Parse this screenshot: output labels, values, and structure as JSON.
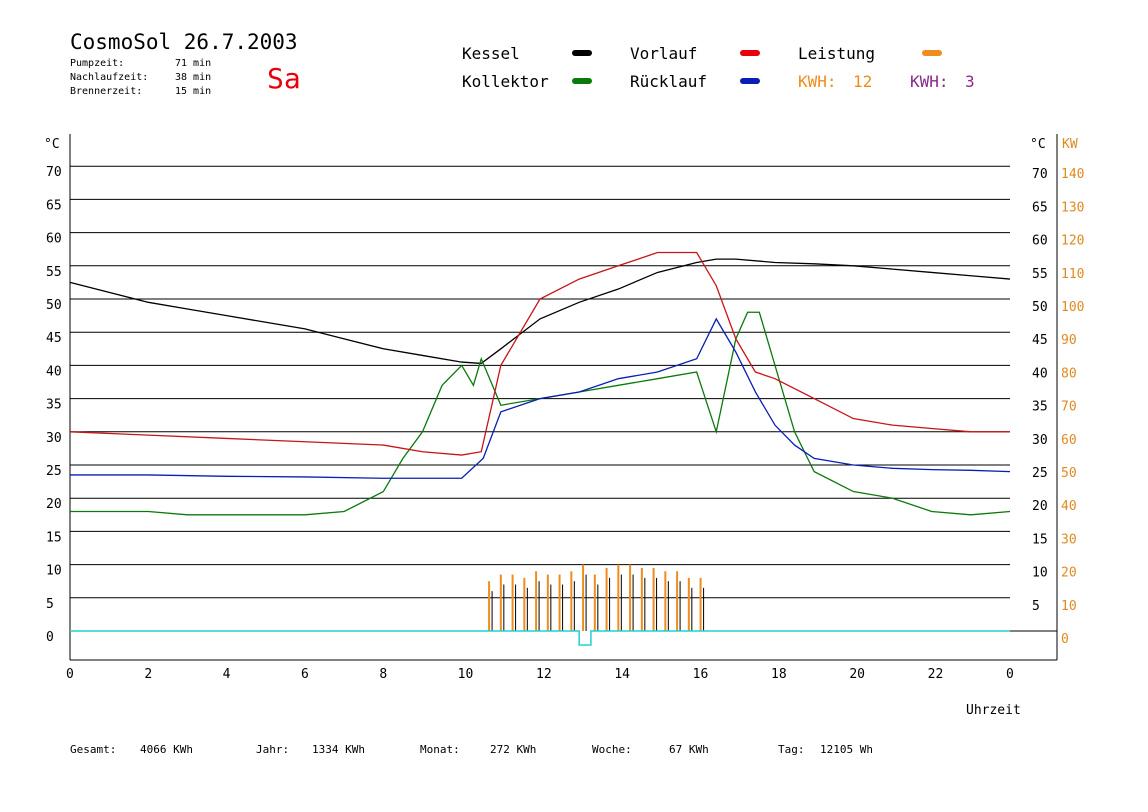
{
  "header": {
    "title": "CosmoSol 26.7.2003",
    "day": "Sa",
    "stats": [
      {
        "label": "Pumpzeit:",
        "value": "71 min"
      },
      {
        "label": "Nachlaufzeit:",
        "value": "38 min"
      },
      {
        "label": "Brennerzeit:",
        "value": "15 min"
      }
    ]
  },
  "legend": {
    "kessel": "Kessel",
    "kollektor": "Kollektor",
    "vorlauf": "Vorlauf",
    "ruecklauf": "Rücklauf",
    "leistung": "Leistung",
    "kwh1_label": "KWH:",
    "kwh1_value": "12",
    "kwh2_label": "KWH:",
    "kwh2_value": "3"
  },
  "colors": {
    "kessel": "#000000",
    "kollektor": "#0a7a0a",
    "vorlauf": "#c81414",
    "ruecklauf": "#0a1eb4",
    "leistung": "#f08c1e",
    "kwh2": "#8c288c",
    "baseline": "#20d0d0",
    "orange_axis": "#e08a20"
  },
  "footer": [
    {
      "label": "Gesamt:",
      "value": "4066 KWh"
    },
    {
      "label": "Jahr:",
      "value": "1334 KWh"
    },
    {
      "label": "Monat:",
      "value": "272 KWh"
    },
    {
      "label": "Woche:",
      "value": "67 KWh"
    },
    {
      "label": "Tag:",
      "value": "12105 Wh"
    }
  ],
  "chart_data": {
    "type": "line",
    "xlabel": "Uhrzeit",
    "ylabel_left": "°C",
    "ylabel_right": "°C",
    "ylabel_right2": "KW",
    "xlim": [
      0,
      24
    ],
    "ylim": [
      0,
      70
    ],
    "xticks": [
      "0",
      "2",
      "4",
      "6",
      "8",
      "10",
      "12",
      "14",
      "16",
      "18",
      "20",
      "22",
      "0"
    ],
    "yticks_left": [
      "0",
      "5",
      "10",
      "15",
      "20",
      "25",
      "30",
      "35",
      "40",
      "45",
      "50",
      "55",
      "60",
      "65",
      "70"
    ],
    "yticks_right": [
      "",
      "5",
      "10",
      "15",
      "20",
      "25",
      "30",
      "35",
      "40",
      "45",
      "50",
      "55",
      "60",
      "65",
      "70"
    ],
    "yticks_right2": [
      "0",
      "10",
      "20",
      "30",
      "40",
      "50",
      "60",
      "70",
      "80",
      "90",
      "100",
      "110",
      "120",
      "130",
      "140"
    ],
    "series": [
      {
        "name": "Kessel",
        "color": "#000000",
        "x": [
          0,
          1,
          2,
          3,
          4,
          5,
          6,
          7,
          8,
          9,
          10,
          10.5,
          11,
          12,
          13,
          14,
          15,
          16,
          16.5,
          17,
          18,
          19,
          20,
          21,
          22,
          23,
          24
        ],
        "y": [
          52.5,
          51,
          49.5,
          48.5,
          47.5,
          46.5,
          45.5,
          44,
          42.5,
          41.5,
          40.5,
          40.3,
          42.5,
          47,
          49.5,
          51.5,
          54,
          55.5,
          56,
          56,
          55.5,
          55.3,
          55,
          54.5,
          54,
          53.5,
          53
        ]
      },
      {
        "name": "Kollektor",
        "color": "#0a7a0a",
        "x": [
          0,
          1,
          2,
          3,
          4,
          5,
          6,
          7,
          8,
          8.5,
          9,
          9.5,
          10,
          10.3,
          10.5,
          11,
          12,
          13,
          14,
          15,
          16,
          16.5,
          17,
          17.3,
          17.6,
          18,
          18.5,
          19,
          20,
          21,
          22,
          23,
          24
        ],
        "y": [
          18,
          18,
          18,
          17.5,
          17.5,
          17.5,
          17.5,
          18,
          21,
          26,
          30,
          37,
          40,
          37,
          41,
          34,
          35,
          36,
          37,
          38,
          39,
          30,
          44,
          48,
          48,
          40,
          30,
          24,
          21,
          20,
          18,
          17.5,
          18
        ]
      },
      {
        "name": "Vorlauf",
        "color": "#c81414",
        "x": [
          0,
          2,
          4,
          6,
          8,
          9,
          10,
          10.5,
          11,
          12,
          13,
          14,
          15,
          16,
          16.5,
          17,
          17.5,
          18,
          19,
          20,
          21,
          22,
          23,
          24
        ],
        "y": [
          30,
          29.5,
          29,
          28.5,
          28,
          27,
          26.5,
          27,
          40,
          50,
          53,
          55,
          57,
          57,
          52,
          44,
          39,
          38,
          35,
          32,
          31,
          30.5,
          30,
          30
        ]
      },
      {
        "name": "Rücklauf",
        "color": "#0a1eb4",
        "x": [
          0,
          2,
          4,
          6,
          8,
          10,
          10.55,
          11,
          12,
          13,
          14,
          15,
          16,
          16.5,
          17,
          17.5,
          18,
          18.5,
          19,
          20,
          21,
          22,
          23,
          24
        ],
        "y": [
          23.5,
          23.5,
          23.3,
          23.2,
          23,
          23,
          26,
          33,
          35,
          36,
          38,
          39,
          41,
          47,
          42,
          36,
          31,
          28,
          26,
          25,
          24.5,
          24.3,
          24.2,
          24
        ]
      }
    ],
    "power_bars": {
      "name": "Leistung",
      "color": "#f08c1e",
      "x": [
        10.7,
        11.0,
        11.3,
        11.6,
        11.9,
        12.2,
        12.5,
        12.8,
        13.1,
        13.4,
        13.7,
        14.0,
        14.3,
        14.6,
        14.9,
        15.2,
        15.5,
        15.8,
        16.1
      ],
      "kw": [
        15,
        17,
        17,
        16,
        18,
        17,
        17,
        18,
        20,
        17,
        19,
        20,
        20,
        19,
        19,
        18,
        18,
        16,
        16
      ]
    }
  }
}
